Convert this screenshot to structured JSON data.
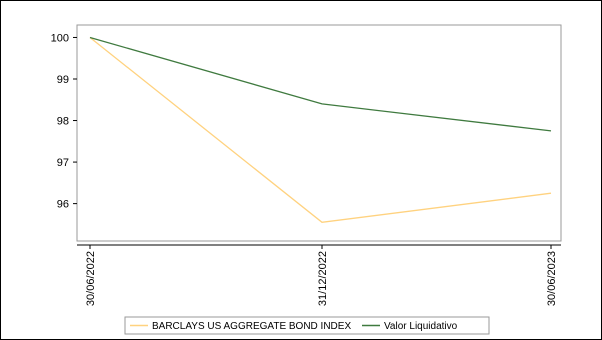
{
  "chart_data": {
    "type": "line",
    "x": [
      "30/06/2022",
      "31/12/2022",
      "30/06/2023"
    ],
    "series": [
      {
        "name": "BARCLAYS US AGGREGATE BOND INDEX",
        "color": "#ffd27f",
        "values": [
          100,
          95.55,
          96.25
        ]
      },
      {
        "name": "Valor Liquidativo",
        "color": "#3f7a3f",
        "values": [
          100,
          98.4,
          97.75
        ]
      }
    ],
    "x_tick_labels": [
      "30/06/2022",
      "31/12/2022",
      "30/06/2023"
    ],
    "y_ticks": [
      96,
      97,
      98,
      99,
      100
    ],
    "ylim": [
      95.1,
      100.3
    ],
    "title": "",
    "xlabel": "",
    "ylabel": "",
    "grid": false,
    "legend_position": "bottom"
  }
}
